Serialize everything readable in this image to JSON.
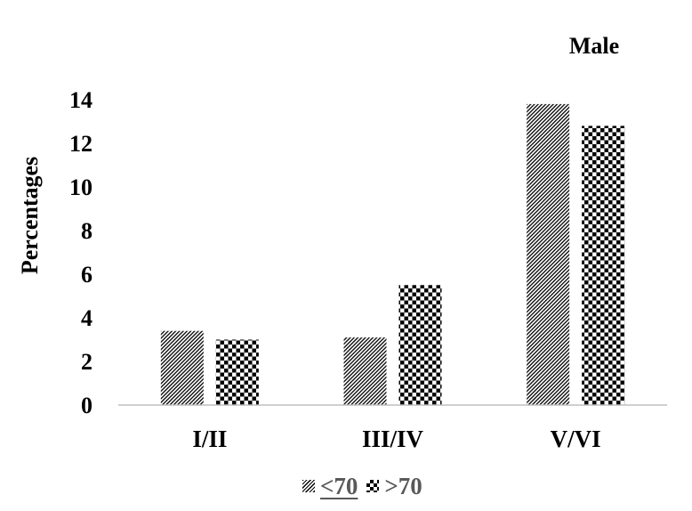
{
  "chart_data": {
    "type": "bar",
    "title": "Male",
    "ylabel": "Percentages",
    "xlabel": "",
    "categories": [
      "I/II",
      "III/IV",
      "V/VI"
    ],
    "series": [
      {
        "name": "<70",
        "values": [
          3.4,
          3.1,
          13.8
        ],
        "pattern": "diagonal-hatch",
        "color": "#000000"
      },
      {
        "name": ">70",
        "values": [
          3.0,
          5.5,
          12.8
        ],
        "pattern": "checkerboard",
        "color": "#000000"
      }
    ],
    "ylim": [
      0,
      14
    ],
    "yticks": [
      0,
      2,
      4,
      6,
      8,
      10,
      12,
      14
    ],
    "grid": false,
    "legend_position": "bottom"
  }
}
